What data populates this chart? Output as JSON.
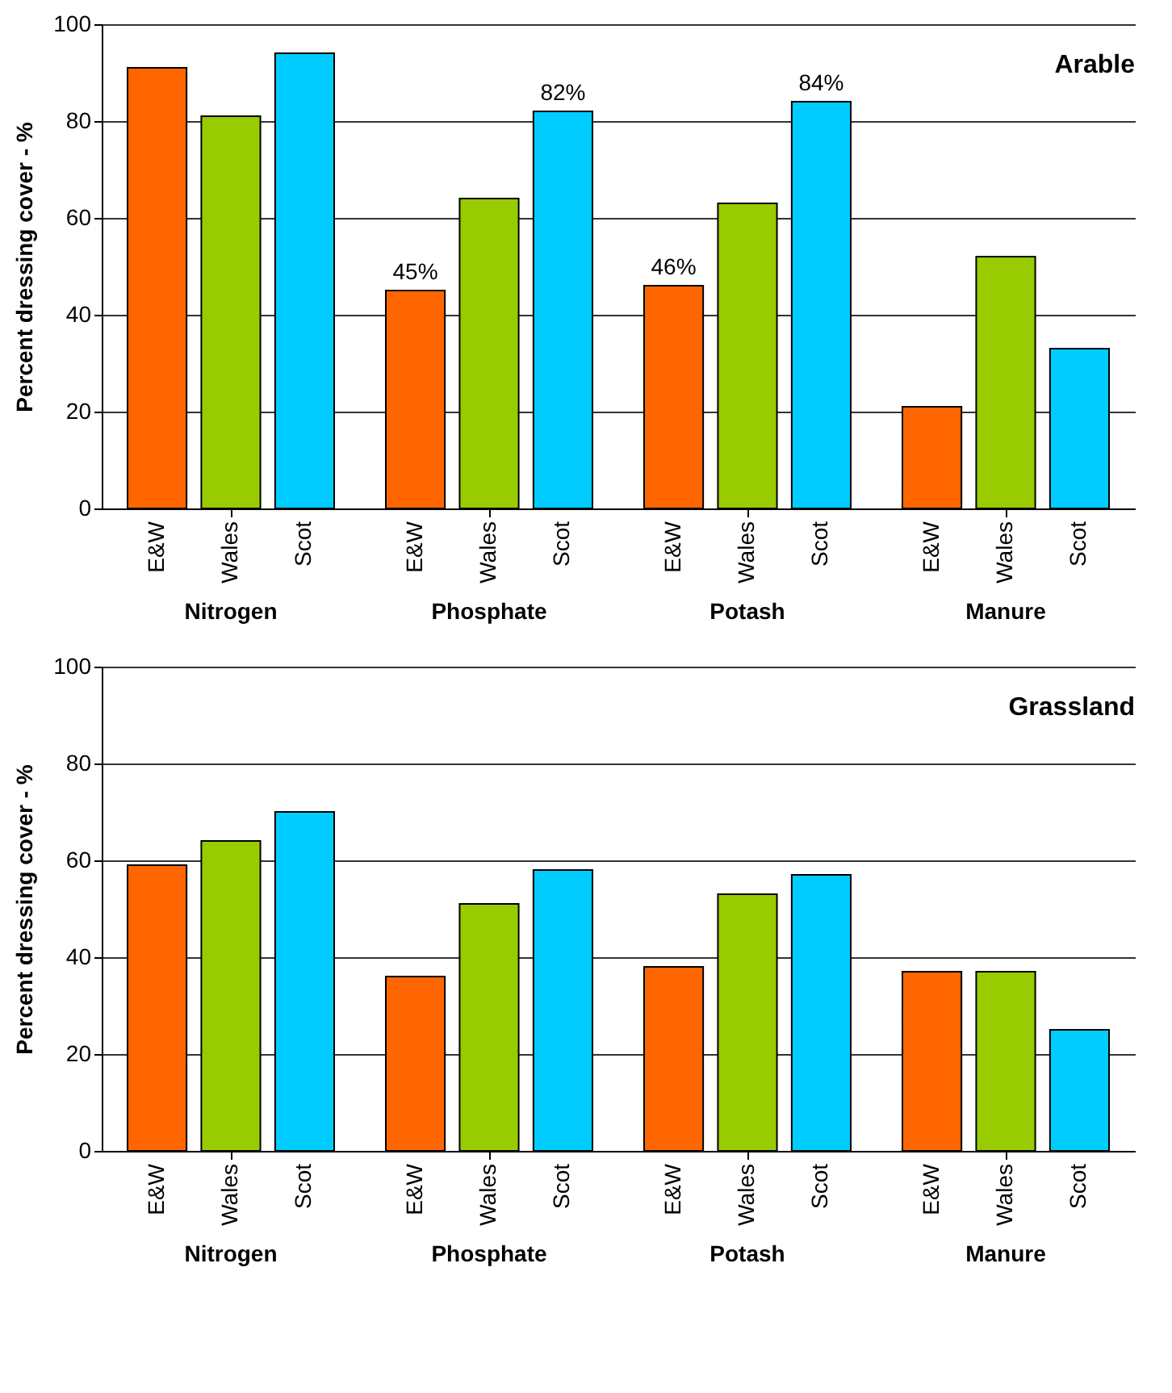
{
  "chart_data": [
    {
      "type": "bar",
      "title": "Arable",
      "ylabel": "Percent dressing cover - %",
      "categories": [
        "Nitrogen",
        "Phosphate",
        "Potash",
        "Manure"
      ],
      "ylim": [
        0,
        100
      ],
      "yticks": [
        0,
        20,
        40,
        60,
        80,
        100
      ],
      "grid": "y",
      "series": [
        {
          "name": "E&W",
          "color": "#ff6600",
          "values": [
            91,
            45,
            46,
            21
          ],
          "value_labels": [
            null,
            "45%",
            "46%",
            null
          ]
        },
        {
          "name": "Wales",
          "color": "#99cc00",
          "values": [
            81,
            64,
            63,
            52
          ]
        },
        {
          "name": "Scot",
          "color": "#00ccff",
          "values": [
            94,
            82,
            84,
            33
          ],
          "value_labels": [
            null,
            "82%",
            "84%",
            null
          ]
        }
      ]
    },
    {
      "type": "bar",
      "title": "Grassland",
      "ylabel": "Percent dressing cover - %",
      "categories": [
        "Nitrogen",
        "Phosphate",
        "Potash",
        "Manure"
      ],
      "ylim": [
        0,
        100
      ],
      "yticks": [
        0,
        20,
        40,
        60,
        80,
        100
      ],
      "grid": "y",
      "series": [
        {
          "name": "E&W",
          "color": "#ff6600",
          "values": [
            59,
            36,
            38,
            37
          ]
        },
        {
          "name": "Wales",
          "color": "#99cc00",
          "values": [
            64,
            51,
            53,
            37
          ]
        },
        {
          "name": "Scot",
          "color": "#00ccff",
          "values": [
            70,
            58,
            57,
            25
          ]
        }
      ]
    }
  ]
}
